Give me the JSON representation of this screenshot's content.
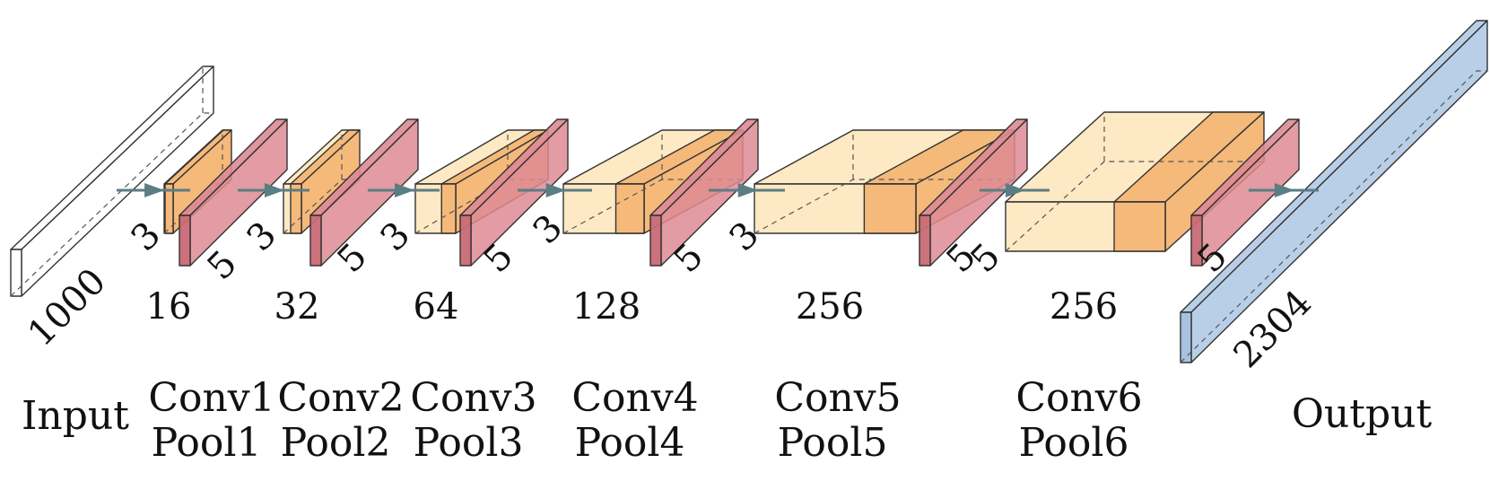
{
  "colors": {
    "conv_light": "#fde9c3",
    "conv_strip": "#f5b97a",
    "pool": "#de8a94",
    "output": "#b9cfe8",
    "input": "#ffffff",
    "arrow": "#5b7d84"
  },
  "input": {
    "size_label": "1000",
    "stage_label": "Input"
  },
  "output": {
    "size_label": "2304",
    "stage_label": "Output"
  },
  "layers": [
    {
      "conv": "Conv1",
      "pool": "Pool1",
      "channels": "16",
      "conv_kernel": "3",
      "pool_kernel": "5"
    },
    {
      "conv": "Conv2",
      "pool": "Pool2",
      "channels": "32",
      "conv_kernel": "3",
      "pool_kernel": "5"
    },
    {
      "conv": "Conv3",
      "pool": "Pool3",
      "channels": "64",
      "conv_kernel": "3",
      "pool_kernel": "5"
    },
    {
      "conv": "Conv4",
      "pool": "Pool4",
      "channels": "128",
      "conv_kernel": "3",
      "pool_kernel": "5"
    },
    {
      "conv": "Conv5",
      "pool": "Pool5",
      "channels": "256",
      "conv_kernel": "3",
      "pool_kernel": "5"
    },
    {
      "conv": "Conv6",
      "pool": "Pool6",
      "channels": "256",
      "conv_kernel": "5",
      "pool_kernel": "5"
    }
  ]
}
